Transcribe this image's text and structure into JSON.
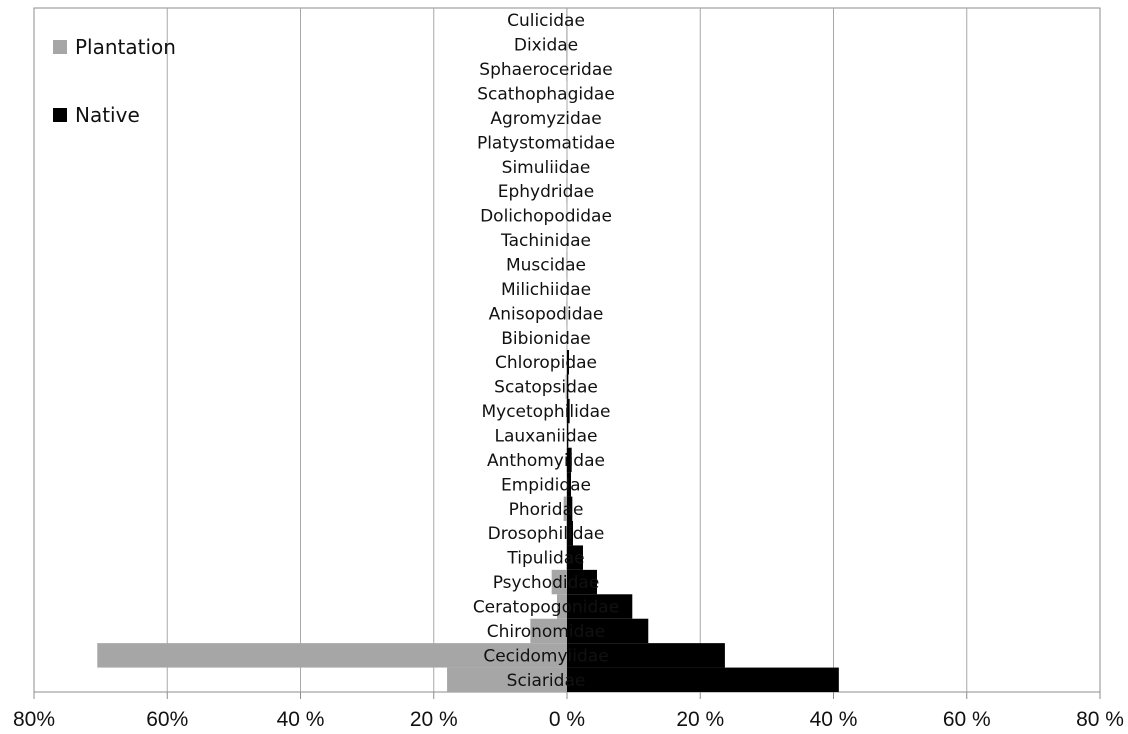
{
  "chart_data": {
    "type": "bar",
    "orientation": "horizontal-diverging",
    "title": "",
    "xlabel": "",
    "ylabel": "",
    "xlim": [
      -80,
      80
    ],
    "x_ticks": [
      -80,
      -60,
      -40,
      -20,
      0,
      20,
      40,
      60,
      80
    ],
    "x_tick_labels": [
      "80%",
      "60%",
      "40 %",
      "20 %",
      "0 %",
      "20 %",
      "40 %",
      "60 %",
      "80 %"
    ],
    "grid": true,
    "legend_position": "top-left",
    "categories": [
      "Culicidae",
      "Dixidae",
      "Sphaeroceridae",
      "Scathophagidae",
      "Agromyzidae",
      "Platystomatidae",
      "Simuliidae",
      "Ephydridae",
      "Dolichopodidae",
      "Tachinidae",
      "Muscidae",
      "Milichiidae",
      "Anisopodidae",
      "Bibionidae",
      "Chloropidae",
      "Scatopsidae",
      "Mycetophilidae",
      "Lauxaniidae",
      "Anthomyiidae",
      "Empididae",
      "Phoridae",
      "Drosophilidae",
      "Tipulidae",
      "Psychodidae",
      "Ceratopogonidae",
      "Chironomidae",
      "Cecidomyiidae",
      "Sciaridae"
    ],
    "series": [
      {
        "name": "Plantation",
        "color": "#a6a6a6",
        "direction": "left",
        "values": [
          0.1,
          0.1,
          0.1,
          0,
          0,
          0,
          0,
          0.1,
          0,
          0,
          0.1,
          0,
          0.1,
          0,
          0.1,
          0.2,
          0.1,
          0,
          0.1,
          0,
          0.5,
          0.1,
          0.1,
          2.3,
          1.5,
          5.5,
          70.5,
          18
        ]
      },
      {
        "name": "Native",
        "color": "#000000",
        "direction": "right",
        "values": [
          0,
          0,
          0,
          0,
          0,
          0,
          0,
          0,
          0,
          0,
          0,
          0,
          0,
          0,
          0.3,
          0.2,
          0.4,
          0.2,
          0.7,
          0.6,
          0.8,
          0.9,
          2.4,
          4.5,
          9.8,
          12.2,
          23.7,
          40.8
        ]
      }
    ]
  }
}
